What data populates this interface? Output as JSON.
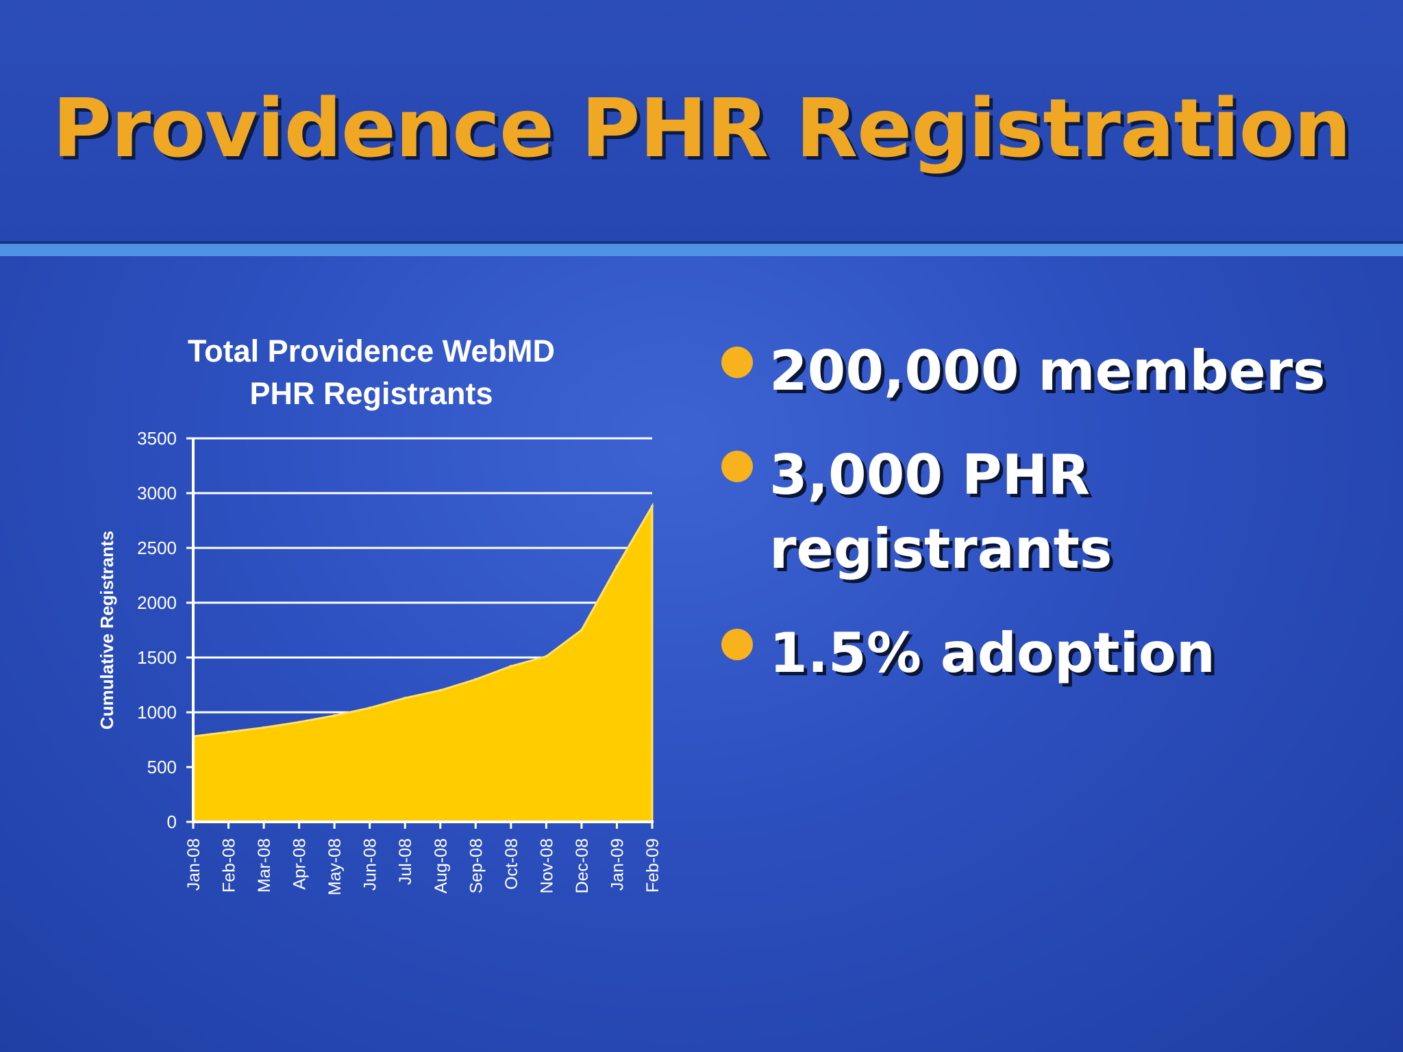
{
  "slide": {
    "title": "Providence PHR Registration",
    "bullets": [
      {
        "text": "200,000 members"
      },
      {
        "text": "3,000 PHR registrants"
      },
      {
        "text": "1.5% adoption"
      }
    ],
    "colors": {
      "title": "#f0a824",
      "bullet_dot": "#f7b21e",
      "area": "#ffcc00",
      "rule": "#4f93e4"
    }
  },
  "chart_data": {
    "type": "area",
    "title": "Total Providence WebMD PHR Registrants",
    "title_lines": [
      "Total Providence WebMD",
      "PHR Registrants"
    ],
    "ylabel": "Cumulative Registrants",
    "xlabel": "",
    "ylim": [
      0,
      3500
    ],
    "yticks": [
      0,
      500,
      1000,
      1500,
      2000,
      2500,
      3000,
      3500
    ],
    "grid": true,
    "legend": "none",
    "categories": [
      "Jan-08",
      "Feb-08",
      "Mar-08",
      "Apr-08",
      "May-08",
      "Jun-08",
      "Jul-08",
      "Aug-08",
      "Sep-08",
      "Oct-08",
      "Nov-08",
      "Dec-08",
      "Jan-09",
      "Feb-09"
    ],
    "values": [
      780,
      820,
      860,
      910,
      970,
      1040,
      1130,
      1200,
      1300,
      1420,
      1510,
      1750,
      2330,
      2880
    ]
  }
}
